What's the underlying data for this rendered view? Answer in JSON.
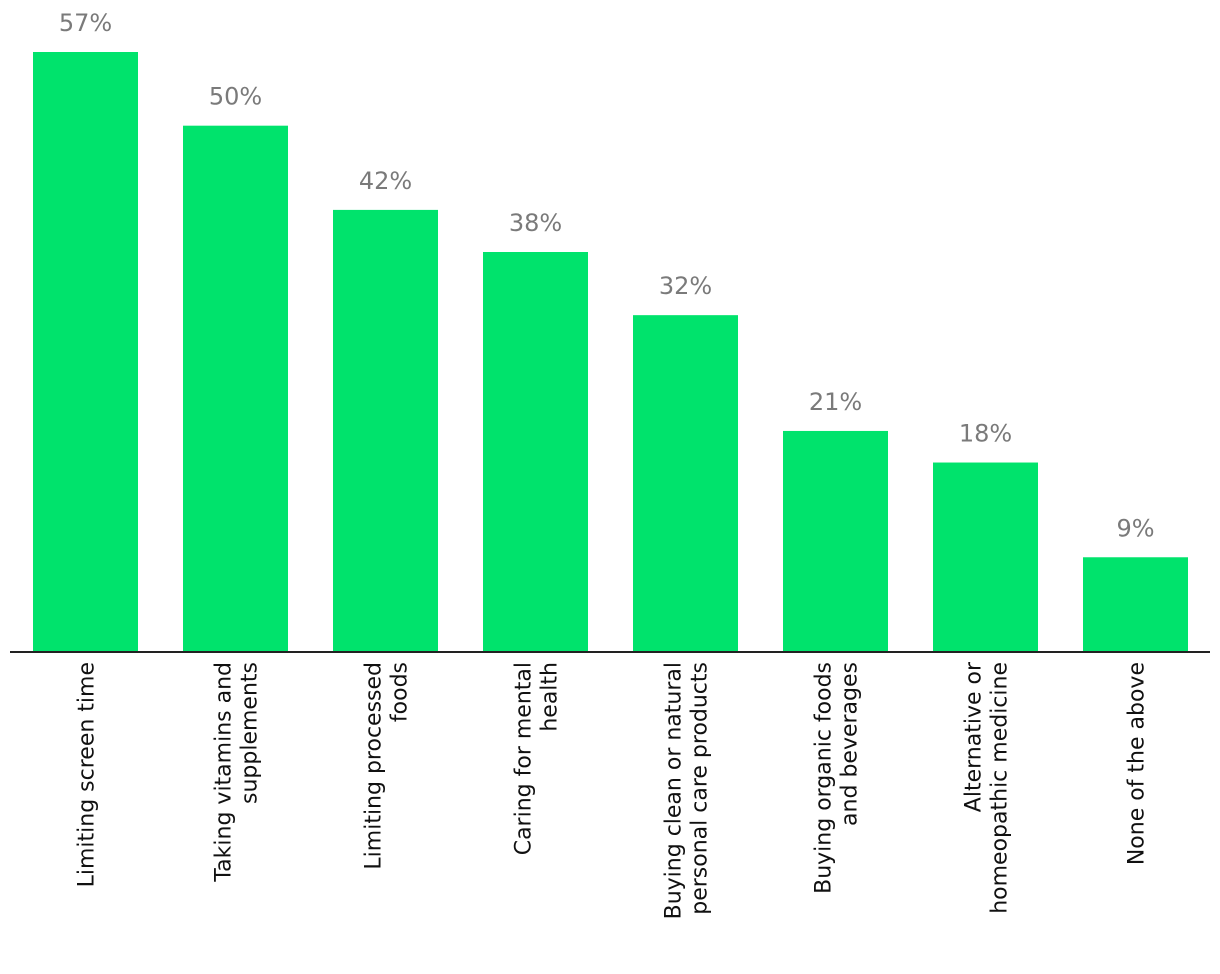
{
  "chart_data": {
    "type": "bar",
    "categories": [
      [
        "Limiting screen time"
      ],
      [
        "Taking vitamins and",
        "supplements"
      ],
      [
        "Limiting processed",
        "foods"
      ],
      [
        "Caring for mental",
        "health"
      ],
      [
        "Buying clean or natural",
        "personal care products"
      ],
      [
        "Buying organic foods",
        "and beverages"
      ],
      [
        "Alternative or",
        "homeopathic medicine"
      ],
      [
        "None of the above"
      ]
    ],
    "values": [
      57,
      50,
      42,
      38,
      32,
      21,
      18,
      9
    ],
    "value_labels": [
      "57%",
      "50%",
      "42%",
      "38%",
      "32%",
      "21%",
      "18%",
      "9%"
    ],
    "ylim": [
      0,
      57
    ],
    "bar_color": "#00e36c",
    "axis_color": "#222222",
    "label_color": "#7a7a7a",
    "grid": false,
    "legend": "none"
  }
}
